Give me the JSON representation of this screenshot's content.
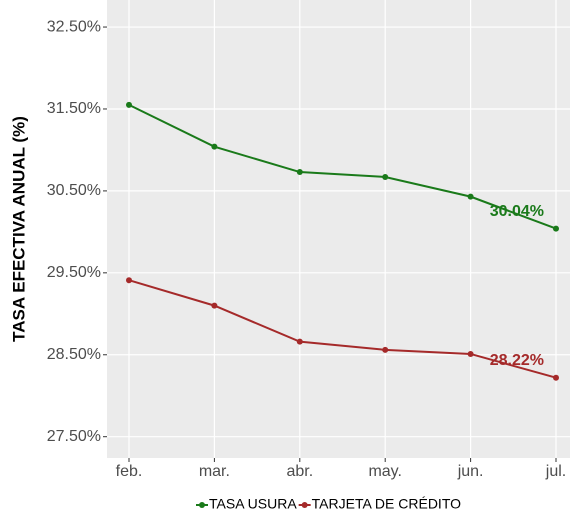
{
  "chart_data": {
    "type": "line",
    "categories": [
      "feb.",
      "mar.",
      "abr.",
      "may.",
      "jun.",
      "jul."
    ],
    "series": [
      {
        "name": "TASA USURA",
        "color": "#1a7a1a",
        "values": [
          31.55,
          31.04,
          30.73,
          30.67,
          30.43,
          30.04
        ],
        "value_labels": [
          null,
          null,
          null,
          null,
          null,
          "30.04%"
        ]
      },
      {
        "name": "TARJETA DE CRÉDITO",
        "color": "#a52a2a",
        "values": [
          29.41,
          29.1,
          28.66,
          28.56,
          28.51,
          28.22
        ],
        "value_labels": [
          null,
          null,
          null,
          null,
          null,
          "28.22%"
        ]
      }
    ],
    "ylabel": "TASA EFECTIVA ANUAL (%)",
    "ylim": [
      27.24,
      32.83
    ],
    "yticks": [
      {
        "value": 27.5,
        "label": "27.50%"
      },
      {
        "value": 28.5,
        "label": "28.50%"
      },
      {
        "value": 29.5,
        "label": "29.50%"
      },
      {
        "value": 30.5,
        "label": "30.50%"
      },
      {
        "value": 31.5,
        "label": "31.50%"
      },
      {
        "value": 32.5,
        "label": "32.50%"
      }
    ],
    "grid": true,
    "legend": "bottom"
  }
}
